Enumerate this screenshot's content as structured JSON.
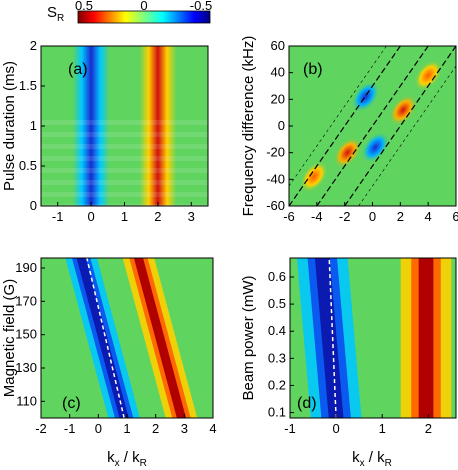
{
  "colorbar": {
    "label_main": "S",
    "label_sub": "R",
    "ticks": [
      "0.5",
      "0",
      "-0.5"
    ],
    "values": [
      0.5,
      0,
      -0.5
    ],
    "colors": [
      "#7f0000",
      "#ff0000",
      "#ffff00",
      "#7fff7f",
      "#00ffff",
      "#0000ff",
      "#00007f"
    ]
  },
  "chart_data": [
    {
      "type": "heatmap",
      "label": "(a)",
      "ylabel": "Pulse duration (ms)",
      "xlim": [
        -1.5,
        3.5
      ],
      "ylim": [
        0,
        2
      ],
      "xticks": [
        -1,
        0,
        1,
        2,
        3
      ],
      "xtick_labels": [
        "-1",
        "0",
        "1",
        "2",
        "3"
      ],
      "yticks": [
        0,
        0.5,
        1,
        1.5,
        2
      ],
      "ytick_labels": [
        "0",
        "0.5",
        "1",
        "1.5",
        "2"
      ],
      "features": [
        {
          "desc": "negative band",
          "x_center": 0,
          "value": -0.5
        },
        {
          "desc": "positive band",
          "x_center": 2,
          "value": 0.5
        }
      ]
    },
    {
      "type": "heatmap",
      "label": "(b)",
      "ylabel": "Frequency difference (kHz)",
      "xlim": [
        -6,
        6
      ],
      "ylim": [
        -60,
        60
      ],
      "xticks": [
        -6,
        -4,
        -2,
        0,
        2,
        4,
        6
      ],
      "xtick_labels": [
        "-6",
        "-4",
        "-2",
        "0",
        "2",
        "4",
        "6"
      ],
      "yticks": [
        -60,
        -40,
        -20,
        0,
        20,
        40,
        60
      ],
      "ytick_labels": [
        "-60",
        "-40",
        "-20",
        "0",
        "20",
        "40",
        "60"
      ],
      "dashed_lines": [
        {
          "x0": -6,
          "y0": -60,
          "x1": 2,
          "y1": 60
        },
        {
          "x0": -4,
          "y0": -60,
          "x1": 4,
          "y1": 60
        },
        {
          "x0": -2,
          "y0": -60,
          "x1": 6,
          "y1": 60
        },
        {
          "x0": -7,
          "y0": -60,
          "x1": 1,
          "y1": 60
        },
        {
          "x0": -1,
          "y0": -60,
          "x1": 7,
          "y1": 60
        }
      ],
      "blobs": [
        {
          "x": -0.5,
          "y": 22,
          "value": -0.5
        },
        {
          "x": 2.2,
          "y": 12,
          "value": 0.5
        },
        {
          "x": -1.8,
          "y": -20,
          "value": 0.5
        },
        {
          "x": 0.2,
          "y": -16,
          "value": -0.5
        },
        {
          "x": -4.2,
          "y": -38,
          "value": 0.4
        },
        {
          "x": 4.0,
          "y": 38,
          "value": 0.4
        }
      ]
    },
    {
      "type": "heatmap",
      "label": "(c)",
      "ylabel": "Magnetic field (G)",
      "xlabel_main": "k",
      "xlabel_sub1": "x",
      "xlabel_sep": " / k",
      "xlabel_sub2": "R",
      "xlim": [
        -2,
        4
      ],
      "ylim": [
        100,
        196
      ],
      "xticks": [
        -2,
        -1,
        0,
        1,
        2,
        3,
        4
      ],
      "xtick_labels": [
        "-2",
        "-1",
        "0",
        "1",
        "2",
        "3",
        "4"
      ],
      "yticks": [
        110,
        130,
        150,
        170,
        190
      ],
      "ytick_labels": [
        "110",
        "130",
        "150",
        "170",
        "190"
      ],
      "bands": [
        {
          "desc": "negative band",
          "x_at_ymin": 0.9,
          "x_at_ymax": -0.6,
          "value": -0.5
        },
        {
          "desc": "positive band",
          "x_at_ymin": 2.9,
          "x_at_ymax": 1.4,
          "value": 0.5
        }
      ],
      "dashed_line": {
        "x0": 0.9,
        "y0": 100,
        "x1": -0.4,
        "y1": 196
      }
    },
    {
      "type": "heatmap",
      "label": "(d)",
      "ylabel": "Beam power (mW)",
      "xlabel_main": "k",
      "xlabel_sub1": "x",
      "xlabel_sep": " / k",
      "xlabel_sub2": "R",
      "xlim": [
        -1,
        2.6
      ],
      "ylim": [
        0.08,
        0.67
      ],
      "xticks": [
        -1,
        0,
        1,
        2
      ],
      "xtick_labels": [
        "-1",
        "0",
        "1",
        "2"
      ],
      "yticks": [
        0.1,
        0.2,
        0.3,
        0.4,
        0.5,
        0.6
      ],
      "ytick_labels": [
        "0.1",
        "0.2",
        "0.3",
        "0.4",
        "0.5",
        "0.6"
      ],
      "bands": [
        {
          "desc": "negative band",
          "x_at_ymin": 0.0,
          "x_at_ymax": -0.3,
          "value": -0.5
        },
        {
          "desc": "positive band",
          "x_at_ymin": 1.95,
          "x_at_ymax": 1.95,
          "value": 0.5
        }
      ],
      "dashed_line": {
        "x0": 0.0,
        "y0": 0.08,
        "x1": -0.15,
        "y1": 0.67
      }
    }
  ]
}
